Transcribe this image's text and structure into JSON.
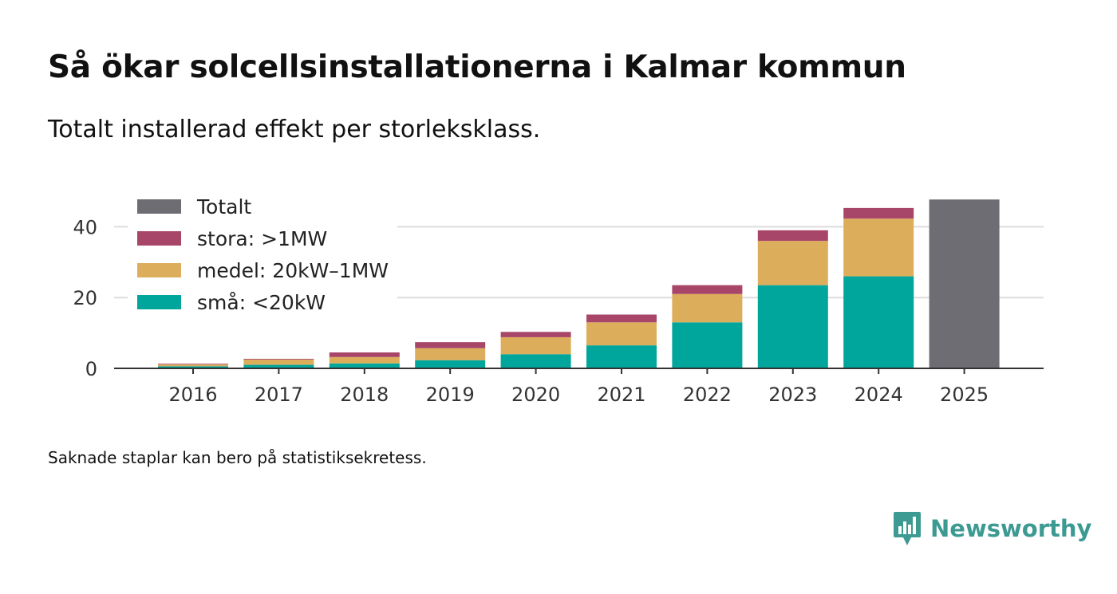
{
  "title": "Så ökar solcellsinstallationerna i Kalmar kommun",
  "subtitle": "Totalt installerad effekt per storleksklass.",
  "note": "Saknade staplar kan bero på statistiksekretess.",
  "brand": {
    "name": "Newsworthy",
    "color": "#3d9a93"
  },
  "chart_data": {
    "type": "bar",
    "stacked": true,
    "categories": [
      "2016",
      "2017",
      "2018",
      "2019",
      "2020",
      "2021",
      "2022",
      "2023",
      "2024",
      "2025"
    ],
    "series": [
      {
        "name": "små: <20kW",
        "color": "#00a59b",
        "values": [
          0.6,
          1.0,
          1.4,
          2.3,
          4.0,
          6.5,
          13.0,
          23.5,
          26.0,
          null
        ]
      },
      {
        "name": "medel: 20kW–1MW",
        "color": "#dcae5b",
        "values": [
          0.5,
          1.5,
          1.8,
          3.4,
          4.8,
          6.5,
          8.0,
          12.5,
          16.3,
          null
        ]
      },
      {
        "name": "stora: >1MW",
        "color": "#a84669",
        "values": [
          0.2,
          0.2,
          1.3,
          1.7,
          1.5,
          2.2,
          2.5,
          3.0,
          3.0,
          null
        ]
      },
      {
        "name": "Totalt",
        "color": "#6e6d73",
        "values": [
          null,
          null,
          null,
          null,
          null,
          null,
          null,
          null,
          null,
          47.7
        ]
      }
    ],
    "legend_order": [
      "Totalt",
      "stora: >1MW",
      "medel: 20kW–1MW",
      "små: <20kW"
    ],
    "yticks": [
      0,
      20,
      40
    ],
    "ylim": [
      0,
      50
    ],
    "xlabel": "",
    "ylabel": "",
    "grid": true,
    "legend_position": "top-left"
  }
}
